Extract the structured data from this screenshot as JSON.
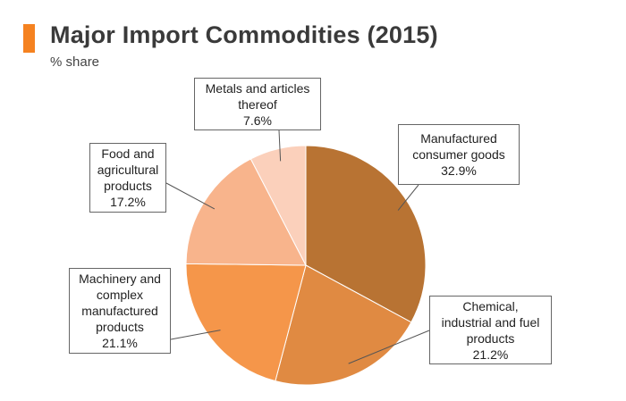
{
  "title": "Major Import Commodities (2015)",
  "subtitle": "% share",
  "chart_data": {
    "type": "pie",
    "title": "Major Import Commodities (2015)",
    "subtitle": "% share",
    "unit": "%",
    "slices": [
      {
        "label_lines": [
          "Manufactured",
          "consumer goods"
        ],
        "value_text": "32.9%",
        "value": 32.9,
        "color": "#b87333"
      },
      {
        "label_lines": [
          "Chemical,",
          "industrial and fuel",
          "products"
        ],
        "value_text": "21.2%",
        "value": 21.2,
        "color": "#e08a42"
      },
      {
        "label_lines": [
          "Machinery and",
          "complex",
          "manufactured",
          "products"
        ],
        "value_text": "21.1%",
        "value": 21.1,
        "color": "#f5964a"
      },
      {
        "label_lines": [
          "Food and",
          "agricultural",
          "products"
        ],
        "value_text": "17.2%",
        "value": 17.2,
        "color": "#f8b48c"
      },
      {
        "label_lines": [
          "Metals and articles",
          "thereof"
        ],
        "value_text": "7.6%",
        "value": 7.6,
        "color": "#fbd0bb"
      }
    ]
  }
}
